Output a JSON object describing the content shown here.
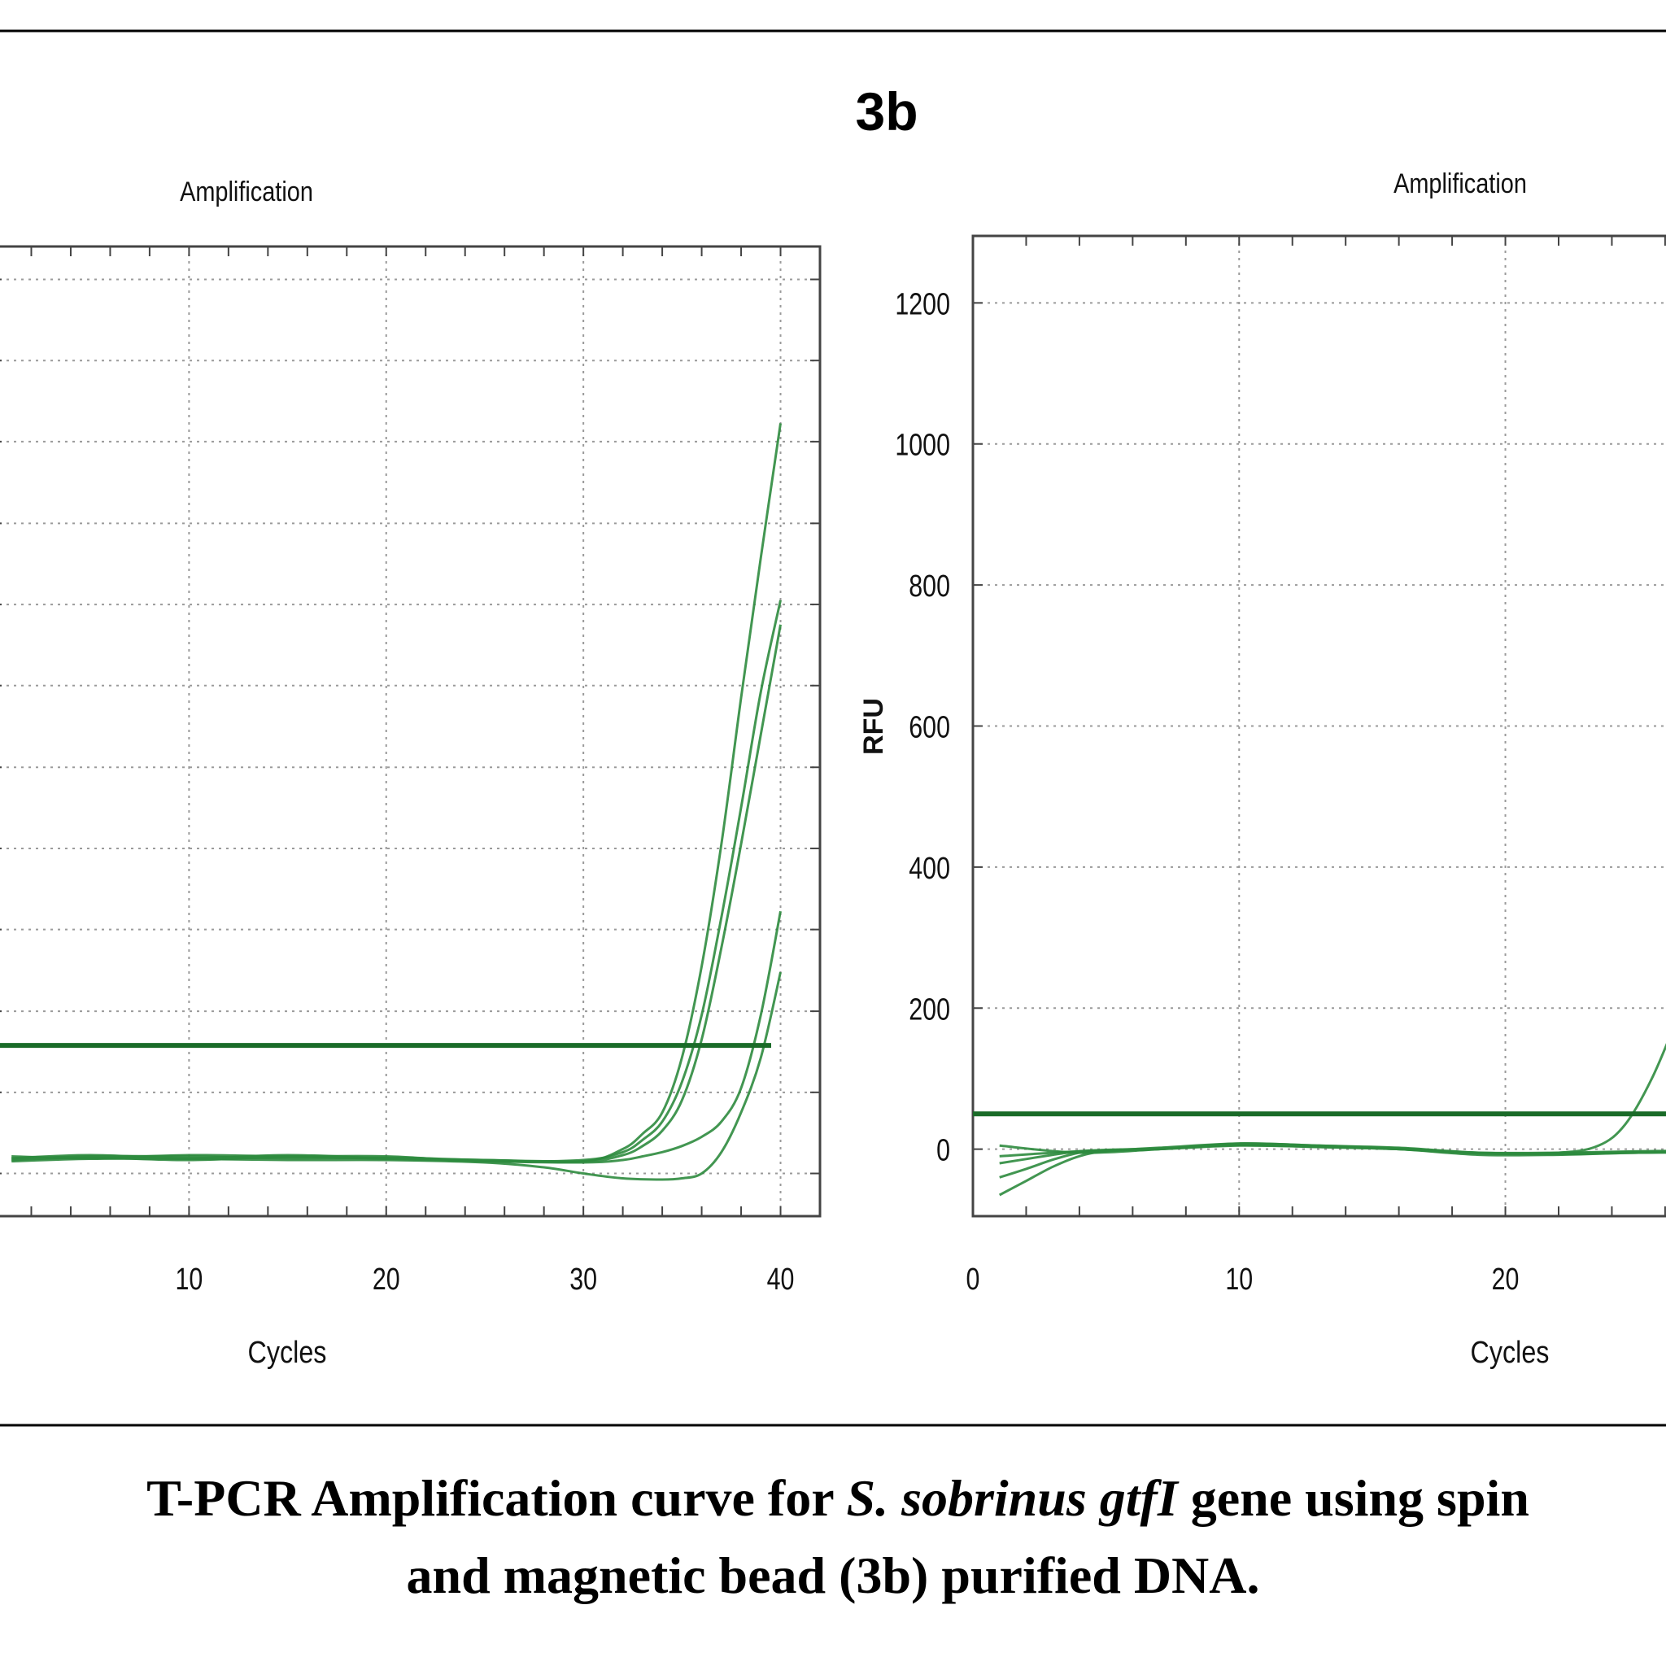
{
  "panel_label": "3b",
  "caption": {
    "line1_part1": "T-PCR Amplification curve for ",
    "line1_species": "S. sobrinus",
    "line1_space": " ",
    "line1_gene": "gtfI",
    "line1_part2": " gene using spin",
    "line2": "and magnetic bead (3b) purified DNA."
  },
  "colors": {
    "curve": "#2e8b3e",
    "threshold": "#1a6b28",
    "grid": "#9a9a9a",
    "axis": "#444444"
  },
  "chart_data": [
    {
      "type": "line",
      "title": "Amplification",
      "xlabel": "Cycles",
      "ylabel": "",
      "xlim": [
        0,
        42
      ],
      "ylim": [
        -70,
        1520
      ],
      "grid": true,
      "x_ticks": [
        "10",
        "20",
        "30",
        "40"
      ],
      "y_ticks": [],
      "threshold": 210,
      "series": [
        {
          "x": [
            1,
            5,
            10,
            15,
            20,
            25,
            30,
            32,
            33,
            34,
            35,
            36,
            37,
            38,
            39,
            40
          ],
          "y": [
            25,
            30,
            25,
            30,
            25,
            22,
            20,
            40,
            65,
            100,
            190,
            340,
            540,
            780,
            1010,
            1230
          ]
        },
        {
          "x": [
            1,
            5,
            10,
            15,
            20,
            25,
            30,
            32,
            33,
            34,
            35,
            36,
            37,
            38,
            39,
            40
          ],
          "y": [
            28,
            25,
            30,
            28,
            28,
            20,
            22,
            35,
            55,
            85,
            150,
            260,
            420,
            600,
            790,
            940
          ]
        },
        {
          "x": [
            1,
            5,
            10,
            15,
            20,
            25,
            30,
            32,
            33,
            34,
            35,
            36,
            37,
            38,
            39,
            40
          ],
          "y": [
            24,
            28,
            28,
            25,
            26,
            22,
            20,
            30,
            45,
            70,
            120,
            220,
            370,
            540,
            720,
            900
          ]
        },
        {
          "x": [
            1,
            5,
            10,
            15,
            20,
            25,
            30,
            32,
            33,
            34,
            35,
            36,
            37,
            38,
            39,
            40
          ],
          "y": [
            22,
            26,
            22,
            27,
            24,
            20,
            18,
            22,
            28,
            35,
            45,
            60,
            85,
            140,
            260,
            430
          ]
        },
        {
          "x": [
            1,
            5,
            10,
            15,
            20,
            25,
            28,
            30,
            32,
            34,
            35,
            36,
            37,
            38,
            39,
            40
          ],
          "y": [
            20,
            24,
            24,
            22,
            22,
            18,
            10,
            0,
            -8,
            -10,
            -8,
            0,
            35,
            100,
            190,
            330
          ]
        }
      ]
    },
    {
      "type": "line",
      "title": "Amplification",
      "xlabel": "Cycles",
      "ylabel": "RFU",
      "xlim": [
        0,
        27.5
      ],
      "ylim": [
        -95,
        1295
      ],
      "grid": true,
      "x_ticks": [
        "0",
        "10",
        "20"
      ],
      "y_ticks": [
        "0",
        "200",
        "400",
        "600",
        "800",
        "1000",
        "1200"
      ],
      "threshold": 50,
      "series": [
        {
          "x": [
            1,
            4,
            7,
            10,
            13,
            16,
            19,
            22,
            23.5,
            24.5,
            25.5,
            26.5,
            27.5
          ],
          "y": [
            5,
            -5,
            0,
            8,
            5,
            2,
            -5,
            -5,
            5,
            35,
            100,
            190,
            290
          ]
        },
        {
          "x": [
            1,
            4,
            7,
            10,
            13,
            16,
            19,
            22,
            25,
            27.5
          ],
          "y": [
            -10,
            -3,
            0,
            5,
            3,
            0,
            -8,
            -8,
            -5,
            -5
          ]
        },
        {
          "x": [
            1,
            2,
            3,
            4,
            5,
            7,
            10,
            13,
            16,
            19,
            22,
            25,
            27.5
          ],
          "y": [
            -65,
            -45,
            -25,
            -10,
            -3,
            0,
            6,
            4,
            0,
            -6,
            -6,
            -4,
            -3
          ]
        },
        {
          "x": [
            1,
            2,
            3,
            4,
            5,
            7,
            10,
            13,
            16,
            19,
            22,
            25,
            27.5
          ],
          "y": [
            -40,
            -28,
            -15,
            -5,
            -2,
            2,
            8,
            5,
            1,
            -5,
            -5,
            -3,
            -2
          ]
        },
        {
          "x": [
            1,
            2,
            3,
            4,
            5,
            7,
            10,
            13,
            16,
            19,
            22,
            25,
            27.5
          ],
          "y": [
            -20,
            -14,
            -8,
            -3,
            -1,
            1,
            6,
            3,
            0,
            -6,
            -7,
            -5,
            -4
          ]
        }
      ]
    }
  ]
}
